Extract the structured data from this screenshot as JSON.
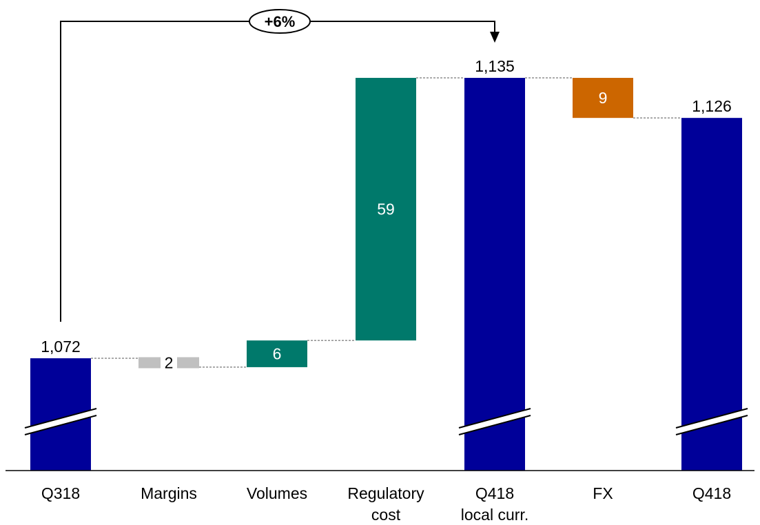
{
  "chart_data": {
    "type": "waterfall",
    "title": "",
    "xlabel": "",
    "ylabel": "",
    "axis_break": true,
    "categories": [
      "Q318",
      "Margins",
      "Volumes",
      "Regulatory cost",
      "Q418 local curr.",
      "FX",
      "Q418"
    ],
    "category_lines": [
      [
        "Q318"
      ],
      [
        "Margins"
      ],
      [
        "Volumes"
      ],
      [
        "Regulatory",
        "cost"
      ],
      [
        "Q418",
        "local curr."
      ],
      [
        "FX"
      ],
      [
        "Q418"
      ]
    ],
    "bars": [
      {
        "category": "Q318",
        "kind": "total",
        "start": 0,
        "end": 1072,
        "label": "1,072",
        "color": "#000099"
      },
      {
        "category": "Margins",
        "kind": "change",
        "start": 1072,
        "end": 1070,
        "label": "2",
        "color": "#c0c0c0"
      },
      {
        "category": "Volumes",
        "kind": "change",
        "start": 1070,
        "end": 1076,
        "label": "6",
        "color": "#00796b"
      },
      {
        "category": "Regulatory cost",
        "kind": "change",
        "start": 1076,
        "end": 1135,
        "label": "59",
        "color": "#00796b"
      },
      {
        "category": "Q418 local curr.",
        "kind": "total",
        "start": 0,
        "end": 1135,
        "label": "1,135",
        "color": "#000099"
      },
      {
        "category": "FX",
        "kind": "change",
        "start": 1135,
        "end": 1126,
        "label": "9",
        "color": "#cc6600"
      },
      {
        "category": "Q418",
        "kind": "total",
        "start": 0,
        "end": 1126,
        "label": "1,126",
        "color": "#000099"
      }
    ],
    "growth_annotation": {
      "text": "+6%",
      "from": "Q318",
      "to": "Q418 local curr."
    }
  }
}
